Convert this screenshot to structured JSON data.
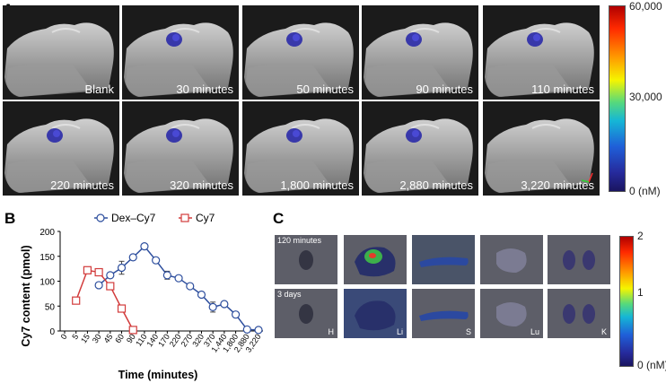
{
  "panel_a": {
    "letter": "A",
    "time_labels": [
      "Blank",
      "30 minutes",
      "50 minutes",
      "90 minutes",
      "110 minutes",
      "220 minutes",
      "320 minutes",
      "1,800 minutes",
      "2,880 minutes",
      "3,220 minutes"
    ],
    "colorbar": {
      "max": "60,000",
      "mid": "30,000",
      "min": "0 (nM)"
    }
  },
  "panel_b": {
    "letter": "B",
    "ylabel": "Cy7 content (pmol)",
    "xlabel": "Time (minutes)",
    "legend": [
      "Dex–Cy7",
      "Cy7"
    ]
  },
  "panel_c": {
    "letter": "C",
    "row_labels": [
      "120 minutes",
      "3 days"
    ],
    "organ_labels": [
      "H",
      "Li",
      "S",
      "Lu",
      "K"
    ],
    "colorbar": {
      "max": "2",
      "mid": "1",
      "min": "0 (nM)"
    }
  },
  "chart_data": {
    "type": "line",
    "categories": [
      "0",
      "5",
      "15",
      "30",
      "45",
      "60",
      "90",
      "110",
      "140",
      "170",
      "220",
      "270",
      "320",
      "370",
      "1,440",
      "1,800",
      "2,880",
      "3,220"
    ],
    "ylim": [
      0,
      200
    ],
    "yticks": [
      0,
      50,
      100,
      150,
      200
    ],
    "xlabel": "Time (minutes)",
    "ylabel": "Cy7 content (pmol)",
    "series": [
      {
        "name": "Dex–Cy7",
        "color": "#2e4f9e",
        "marker": "circle",
        "points": [
          [
            3,
            92
          ],
          [
            4,
            112
          ],
          [
            5,
            127
          ],
          [
            6,
            148
          ],
          [
            7,
            170
          ],
          [
            8,
            142
          ],
          [
            9,
            112
          ],
          [
            10,
            106
          ],
          [
            11,
            90
          ],
          [
            12,
            73
          ],
          [
            13,
            48
          ],
          [
            14,
            54
          ],
          [
            15,
            33
          ],
          [
            16,
            3
          ],
          [
            17,
            2
          ]
        ],
        "errors": [
          0,
          0,
          13,
          0,
          5,
          0,
          8,
          0,
          0,
          0,
          10,
          0,
          0,
          0,
          0
        ]
      },
      {
        "name": "Cy7",
        "color": "#d23b3b",
        "marker": "square",
        "points": [
          [
            1,
            61
          ],
          [
            2,
            122
          ],
          [
            3,
            118
          ],
          [
            4,
            90
          ],
          [
            5,
            45
          ],
          [
            6,
            2
          ]
        ],
        "errors": [
          0,
          5,
          0,
          0,
          0,
          0
        ]
      }
    ]
  }
}
